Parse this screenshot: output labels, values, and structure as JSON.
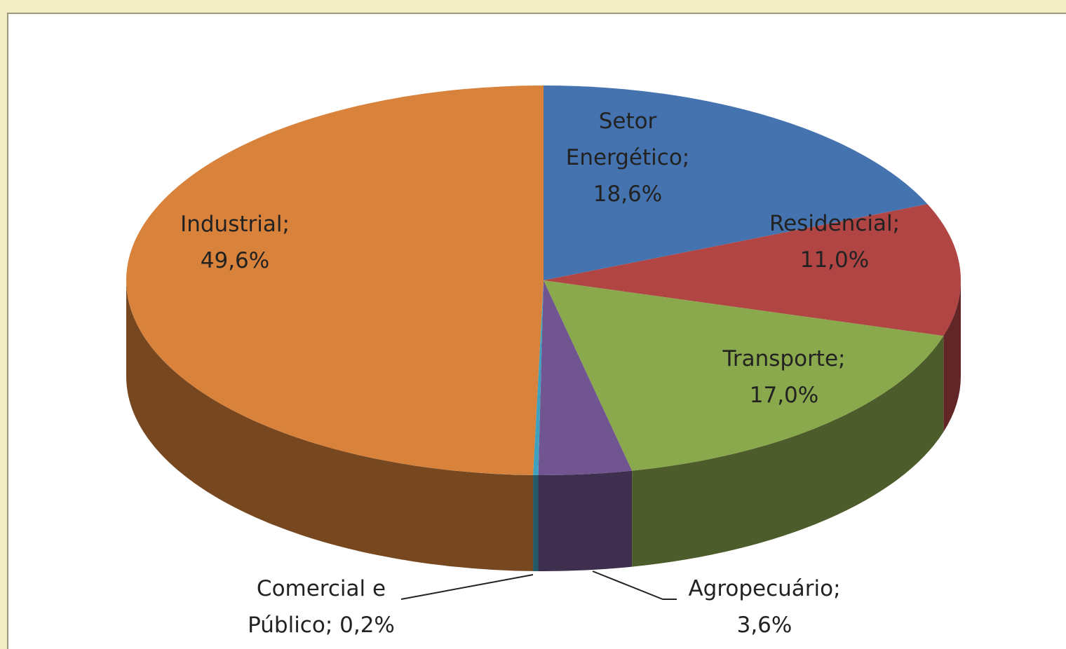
{
  "chart_data": {
    "type": "pie3d",
    "value_labels": [
      "Setor Energético; 18,6%",
      "Residencial; 11,0%",
      "Transporte; 17,0%",
      "Agropecuário; 3,6%",
      "Comercial e Público; 0,2%",
      "Industrial; 49,6%"
    ],
    "values": [
      18.6,
      11.0,
      17.0,
      3.6,
      0.2,
      49.6
    ],
    "colors": [
      "#4573b0",
      "#b04544",
      "#8aa84c",
      "#715590",
      "#3fa1be",
      "#d9823b"
    ]
  }
}
